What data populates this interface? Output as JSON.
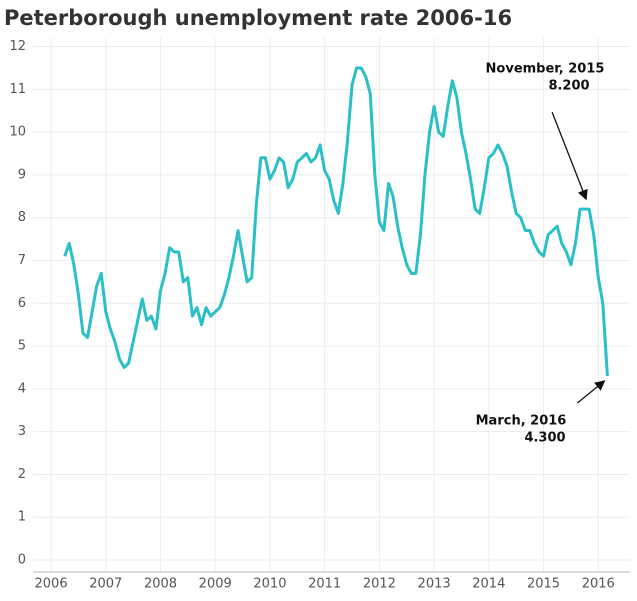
{
  "chart_data": {
    "type": "line",
    "title": "Peterborough unemployment rate 2006-16",
    "x": [
      2006.25,
      2006.333,
      2006.417,
      2006.5,
      2006.583,
      2006.667,
      2006.75,
      2006.833,
      2006.917,
      2007.0,
      2007.083,
      2007.167,
      2007.25,
      2007.333,
      2007.417,
      2007.5,
      2007.583,
      2007.667,
      2007.75,
      2007.833,
      2007.917,
      2008.0,
      2008.083,
      2008.167,
      2008.25,
      2008.333,
      2008.417,
      2008.5,
      2008.583,
      2008.667,
      2008.75,
      2008.833,
      2008.917,
      2009.0,
      2009.083,
      2009.167,
      2009.25,
      2009.333,
      2009.417,
      2009.5,
      2009.583,
      2009.667,
      2009.75,
      2009.833,
      2009.917,
      2010.0,
      2010.083,
      2010.167,
      2010.25,
      2010.333,
      2010.417,
      2010.5,
      2010.583,
      2010.667,
      2010.75,
      2010.833,
      2010.917,
      2011.0,
      2011.083,
      2011.167,
      2011.25,
      2011.333,
      2011.417,
      2011.5,
      2011.583,
      2011.667,
      2011.75,
      2011.833,
      2011.917,
      2012.0,
      2012.083,
      2012.167,
      2012.25,
      2012.333,
      2012.417,
      2012.5,
      2012.583,
      2012.667,
      2012.75,
      2012.833,
      2012.917,
      2013.0,
      2013.083,
      2013.167,
      2013.25,
      2013.333,
      2013.417,
      2013.5,
      2013.583,
      2013.667,
      2013.75,
      2013.833,
      2013.917,
      2014.0,
      2014.083,
      2014.167,
      2014.25,
      2014.333,
      2014.417,
      2014.5,
      2014.583,
      2014.667,
      2014.75,
      2014.833,
      2014.917,
      2015.0,
      2015.083,
      2015.167,
      2015.25,
      2015.333,
      2015.417,
      2015.5,
      2015.583,
      2015.667,
      2015.75,
      2015.833,
      2015.917,
      2016.0,
      2016.083,
      2016.167
    ],
    "series": [
      {
        "color": "#2bbfc8",
        "values": [
          7.1,
          7.4,
          6.9,
          6.2,
          5.3,
          5.2,
          5.8,
          6.4,
          6.7,
          5.8,
          5.4,
          5.1,
          4.7,
          4.5,
          4.6,
          5.1,
          5.6,
          6.1,
          5.6,
          5.7,
          5.4,
          6.3,
          6.7,
          7.3,
          7.2,
          7.2,
          6.5,
          6.6,
          5.7,
          5.9,
          5.5,
          5.9,
          5.7,
          5.8,
          5.9,
          6.2,
          6.6,
          7.1,
          7.7,
          7.1,
          6.5,
          6.6,
          8.3,
          9.4,
          9.4,
          8.9,
          9.1,
          9.4,
          9.3,
          8.7,
          8.9,
          9.3,
          9.4,
          9.5,
          9.3,
          9.4,
          9.7,
          9.1,
          8.9,
          8.4,
          8.1,
          8.8,
          9.8,
          11.1,
          11.5,
          11.5,
          11.3,
          10.9,
          9.0,
          7.9,
          7.7,
          8.8,
          8.5,
          7.8,
          7.3,
          6.9,
          6.7,
          6.7,
          7.6,
          9.0,
          10.0,
          10.6,
          10.0,
          9.9,
          10.6,
          11.2,
          10.8,
          10.0,
          9.5,
          8.9,
          8.2,
          8.1,
          8.7,
          9.4,
          9.5,
          9.7,
          9.5,
          9.2,
          8.6,
          8.1,
          8.0,
          7.7,
          7.7,
          7.4,
          7.2,
          7.1,
          7.6,
          7.7,
          7.8,
          7.4,
          7.2,
          6.9,
          7.4,
          8.2,
          8.2,
          8.2,
          7.6,
          6.6,
          6.0,
          4.3
        ]
      }
    ],
    "xlim": [
      2005.67,
      2016.58
    ],
    "xticks": [
      2006,
      2007,
      2008,
      2009,
      2010,
      2011,
      2012,
      2013,
      2014,
      2015,
      2016
    ],
    "ylim": [
      -0.28,
      12.2
    ],
    "yticks": [
      0,
      1,
      2,
      3,
      4,
      5,
      6,
      7,
      8,
      9,
      10,
      11,
      12
    ],
    "grid": true,
    "annotations": [
      {
        "text": "November, 2015",
        "x": 2015.833,
        "value": 8.2,
        "value_label": "8.200"
      },
      {
        "text": "March, 2016",
        "x": 2016.167,
        "value": 4.3,
        "value_label": "4.300"
      }
    ]
  }
}
